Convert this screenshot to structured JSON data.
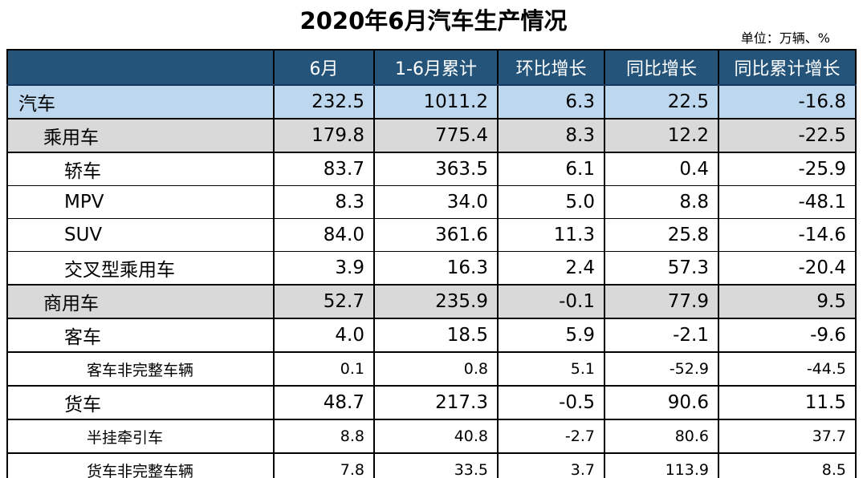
{
  "title": "2020年6月汽车生产情况",
  "unit_note": "单位：万辆、%",
  "colors": {
    "header_bg": "#25547B",
    "header_text": "#FFFFFF",
    "row_highlight_blue": "#BDD7EE",
    "row_highlight_grey": "#D9D9D9",
    "border": "#000000"
  },
  "table": {
    "columns": [
      "",
      "6月",
      "1-6月累计",
      "环比增长",
      "同比增长",
      "同比累计增长"
    ],
    "rows": [
      {
        "label": "汽车",
        "level": 0,
        "bg": "blue",
        "size": "normal",
        "rule_below": "heavy",
        "values": [
          "232.5",
          "1011.2",
          "6.3",
          "22.5",
          "-16.8"
        ]
      },
      {
        "label": "乘用车",
        "level": 1,
        "bg": "grey",
        "size": "normal",
        "rule_below": "heavy",
        "values": [
          "179.8",
          "775.4",
          "8.3",
          "12.2",
          "-22.5"
        ]
      },
      {
        "label": "轿车",
        "level": 2,
        "bg": "white",
        "size": "normal",
        "rule_below": "thin",
        "values": [
          "83.7",
          "363.5",
          "6.1",
          "0.4",
          "-25.9"
        ]
      },
      {
        "label": "MPV",
        "level": 2,
        "bg": "white",
        "size": "normal",
        "rule_below": "thin",
        "values": [
          "8.3",
          "34.0",
          "5.0",
          "8.8",
          "-48.1"
        ]
      },
      {
        "label": "SUV",
        "level": 2,
        "bg": "white",
        "size": "normal",
        "rule_below": "thin",
        "values": [
          "84.0",
          "361.6",
          "11.3",
          "25.8",
          "-14.6"
        ]
      },
      {
        "label": "交叉型乘用车",
        "level": 2,
        "bg": "white",
        "size": "normal",
        "rule_below": "heavy",
        "values": [
          "3.9",
          "16.3",
          "2.4",
          "57.3",
          "-20.4"
        ]
      },
      {
        "label": "商用车",
        "level": 1,
        "bg": "grey",
        "size": "normal",
        "rule_below": "heavy",
        "values": [
          "52.7",
          "235.9",
          "-0.1",
          "77.9",
          "9.5"
        ]
      },
      {
        "label": "客车",
        "level": 2,
        "bg": "white",
        "size": "normal",
        "rule_below": "heavy",
        "values": [
          "4.0",
          "18.5",
          "5.9",
          "-2.1",
          "-9.6"
        ]
      },
      {
        "label": "客车非完整车辆",
        "level": 3,
        "bg": "white",
        "size": "small",
        "rule_below": "heavy",
        "values": [
          "0.1",
          "0.8",
          "5.1",
          "-52.9",
          "-44.5"
        ]
      },
      {
        "label": "货车",
        "level": 2,
        "bg": "white",
        "size": "normal",
        "rule_below": "heavy",
        "values": [
          "48.7",
          "217.3",
          "-0.5",
          "90.6",
          "11.5"
        ]
      },
      {
        "label": "半挂牵引车",
        "level": 3,
        "bg": "white",
        "size": "small",
        "rule_below": "heavy",
        "values": [
          "8.8",
          "40.8",
          "-2.7",
          "80.6",
          "37.7"
        ]
      },
      {
        "label": "货车非完整车辆",
        "level": 3,
        "bg": "white",
        "size": "small",
        "rule_below": "heavy",
        "values": [
          "7.8",
          "33.5",
          "3.7",
          "113.9",
          "8.5"
        ]
      }
    ]
  },
  "chart_data": {
    "type": "table",
    "title": "2020年6月汽车生产情况",
    "unit": "万辆、%",
    "columns": [
      "6月",
      "1-6月累计",
      "环比增长",
      "同比增长",
      "同比累计增长"
    ],
    "rows": [
      {
        "category": "汽车",
        "values": [
          232.5,
          1011.2,
          6.3,
          22.5,
          -16.8
        ]
      },
      {
        "category": "乘用车",
        "values": [
          179.8,
          775.4,
          8.3,
          12.2,
          -22.5
        ]
      },
      {
        "category": "轿车",
        "values": [
          83.7,
          363.5,
          6.1,
          0.4,
          -25.9
        ]
      },
      {
        "category": "MPV",
        "values": [
          8.3,
          34.0,
          5.0,
          8.8,
          -48.1
        ]
      },
      {
        "category": "SUV",
        "values": [
          84.0,
          361.6,
          11.3,
          25.8,
          -14.6
        ]
      },
      {
        "category": "交叉型乘用车",
        "values": [
          3.9,
          16.3,
          2.4,
          57.3,
          -20.4
        ]
      },
      {
        "category": "商用车",
        "values": [
          52.7,
          235.9,
          -0.1,
          77.9,
          9.5
        ]
      },
      {
        "category": "客车",
        "values": [
          4.0,
          18.5,
          5.9,
          -2.1,
          -9.6
        ]
      },
      {
        "category": "客车非完整车辆",
        "values": [
          0.1,
          0.8,
          5.1,
          -52.9,
          -44.5
        ]
      },
      {
        "category": "货车",
        "values": [
          48.7,
          217.3,
          -0.5,
          90.6,
          11.5
        ]
      },
      {
        "category": "半挂牵引车",
        "values": [
          8.8,
          40.8,
          -2.7,
          80.6,
          37.7
        ]
      },
      {
        "category": "货车非完整车辆",
        "values": [
          7.8,
          33.5,
          3.7,
          113.9,
          8.5
        ]
      }
    ]
  }
}
